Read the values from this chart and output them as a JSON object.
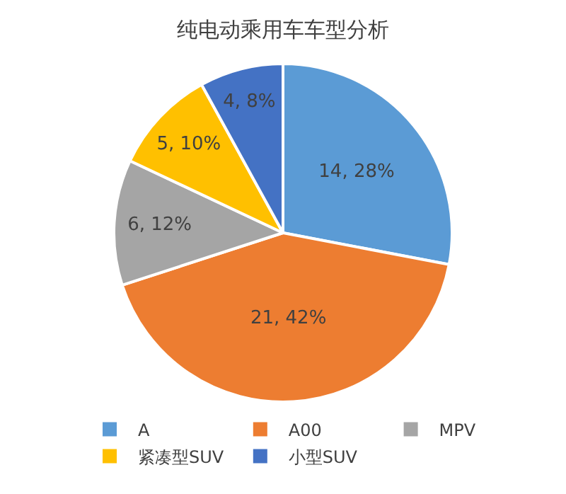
{
  "chart_data": {
    "type": "pie",
    "title": "纯电动乘用车车型分析",
    "categories": [
      "A",
      "A00",
      "MPV",
      "紧凑型SUV",
      "小型SUV"
    ],
    "values": [
      14,
      21,
      6,
      5,
      4
    ],
    "value_labels": [
      "14, 28%",
      "21, 42%",
      "6, 12%",
      "5, 10%",
      "4, 8%"
    ],
    "colors": [
      "#5b9bd5",
      "#ed7d31",
      "#a5a5a5",
      "#ffc000",
      "#4472c4"
    ],
    "legend": "bottom"
  }
}
